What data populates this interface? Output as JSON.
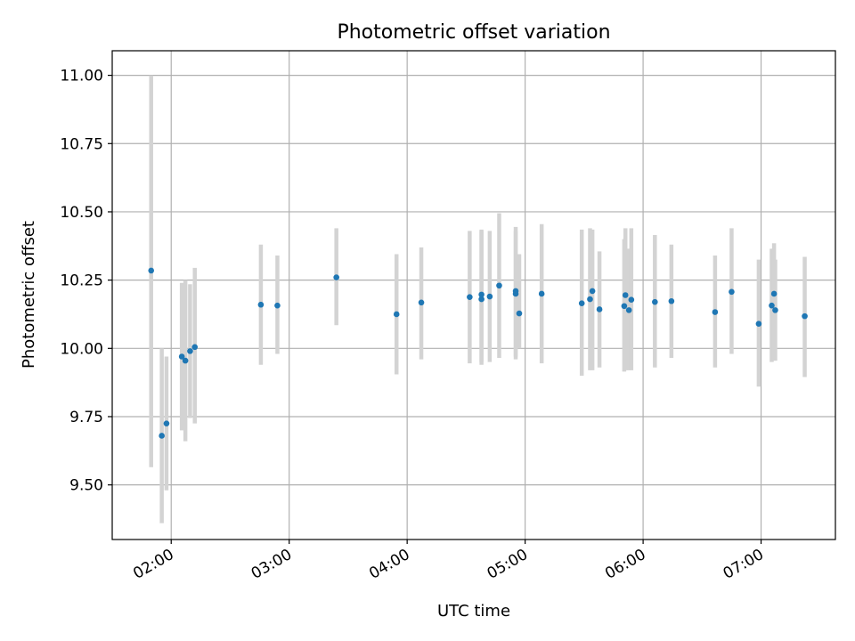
{
  "chart_data": {
    "type": "scatter",
    "title": "Photometric offset variation",
    "xlabel": "UTC time",
    "ylabel": "Photometric offset",
    "x_ticks": [
      "02:00",
      "03:00",
      "04:00",
      "05:00",
      "06:00",
      "07:00"
    ],
    "x_tick_hours": [
      2,
      3,
      4,
      5,
      6,
      7
    ],
    "xlim_hours": [
      1.5,
      7.63
    ],
    "y_ticks": [
      "9.50",
      "9.75",
      "10.00",
      "10.25",
      "10.50",
      "10.75",
      "11.00"
    ],
    "y_tick_values": [
      9.5,
      9.75,
      10.0,
      10.25,
      10.5,
      10.75,
      11.0
    ],
    "ylim": [
      9.3,
      11.09
    ],
    "grid": true,
    "colors": {
      "point": "#1f77b4",
      "errorbar": "#d3d3d3",
      "grid": "#b0b0b0"
    },
    "series": [
      {
        "points": [
          {
            "t": 1.83,
            "y": 10.285,
            "lo": 9.565,
            "hi": 11.0
          },
          {
            "t": 1.92,
            "y": 9.68,
            "lo": 9.36,
            "hi": 10.0
          },
          {
            "t": 1.96,
            "y": 9.725,
            "lo": 9.48,
            "hi": 9.97
          },
          {
            "t": 2.09,
            "y": 9.97,
            "lo": 9.7,
            "hi": 10.24
          },
          {
            "t": 2.12,
            "y": 9.955,
            "lo": 9.66,
            "hi": 10.25
          },
          {
            "t": 2.16,
            "y": 9.99,
            "lo": 9.745,
            "hi": 10.235
          },
          {
            "t": 2.2,
            "y": 10.005,
            "lo": 9.725,
            "hi": 10.295
          },
          {
            "t": 2.76,
            "y": 10.16,
            "lo": 9.94,
            "hi": 10.38
          },
          {
            "t": 2.9,
            "y": 10.157,
            "lo": 9.98,
            "hi": 10.34
          },
          {
            "t": 3.4,
            "y": 10.26,
            "lo": 10.085,
            "hi": 10.44
          },
          {
            "t": 3.91,
            "y": 10.125,
            "lo": 9.905,
            "hi": 10.345
          },
          {
            "t": 4.12,
            "y": 10.168,
            "lo": 9.96,
            "hi": 10.37
          },
          {
            "t": 4.53,
            "y": 10.188,
            "lo": 9.945,
            "hi": 10.43
          },
          {
            "t": 4.63,
            "y": 10.18,
            "lo": 9.94,
            "hi": 10.435
          },
          {
            "t": 4.63,
            "y": 10.197,
            "lo": 9.95,
            "hi": 10.43
          },
          {
            "t": 4.7,
            "y": 10.19,
            "lo": 9.95,
            "hi": 10.43
          },
          {
            "t": 4.78,
            "y": 10.23,
            "lo": 9.965,
            "hi": 10.495
          },
          {
            "t": 4.92,
            "y": 10.2,
            "lo": 9.96,
            "hi": 10.445
          },
          {
            "t": 4.92,
            "y": 10.21,
            "lo": 9.97,
            "hi": 10.43
          },
          {
            "t": 4.95,
            "y": 10.128,
            "lo": 10.0,
            "hi": 10.345
          },
          {
            "t": 5.14,
            "y": 10.2,
            "lo": 9.945,
            "hi": 10.455
          },
          {
            "t": 5.48,
            "y": 10.165,
            "lo": 9.9,
            "hi": 10.435
          },
          {
            "t": 5.55,
            "y": 10.18,
            "lo": 9.92,
            "hi": 10.44
          },
          {
            "t": 5.57,
            "y": 10.21,
            "lo": 9.92,
            "hi": 10.435
          },
          {
            "t": 5.63,
            "y": 10.143,
            "lo": 9.93,
            "hi": 10.355
          },
          {
            "t": 5.84,
            "y": 10.155,
            "lo": 9.915,
            "hi": 10.4
          },
          {
            "t": 5.85,
            "y": 10.195,
            "lo": 9.92,
            "hi": 10.44
          },
          {
            "t": 5.88,
            "y": 10.14,
            "lo": 9.92,
            "hi": 10.365
          },
          {
            "t": 5.9,
            "y": 10.178,
            "lo": 9.92,
            "hi": 10.44
          },
          {
            "t": 6.1,
            "y": 10.17,
            "lo": 9.93,
            "hi": 10.415
          },
          {
            "t": 6.24,
            "y": 10.173,
            "lo": 9.965,
            "hi": 10.38
          },
          {
            "t": 6.61,
            "y": 10.133,
            "lo": 9.93,
            "hi": 10.34
          },
          {
            "t": 6.75,
            "y": 10.207,
            "lo": 9.98,
            "hi": 10.44
          },
          {
            "t": 6.98,
            "y": 10.09,
            "lo": 9.86,
            "hi": 10.325
          },
          {
            "t": 7.09,
            "y": 10.157,
            "lo": 9.95,
            "hi": 10.365
          },
          {
            "t": 7.11,
            "y": 10.2,
            "lo": 9.955,
            "hi": 10.385
          },
          {
            "t": 7.12,
            "y": 10.14,
            "lo": 9.955,
            "hi": 10.325
          },
          {
            "t": 7.37,
            "y": 10.118,
            "lo": 9.895,
            "hi": 10.335
          }
        ]
      }
    ]
  }
}
